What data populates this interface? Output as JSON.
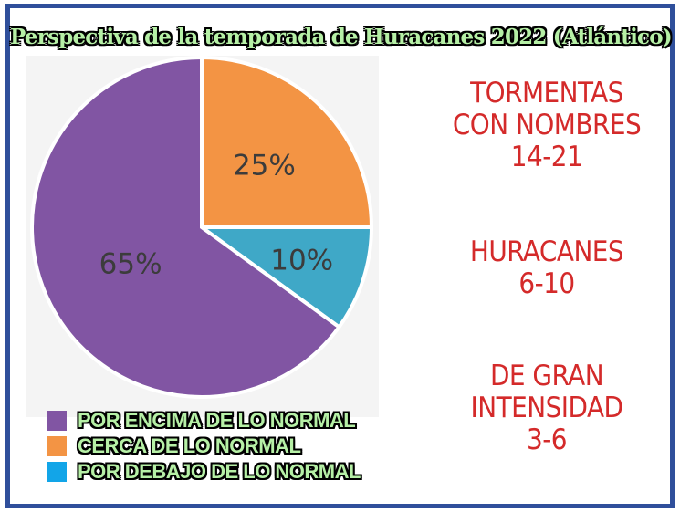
{
  "title": "Perspectiva de la temporada de Huracanes 2022 (Atlántico)",
  "chart_data": {
    "type": "pie",
    "slices": [
      {
        "label": "POR ENCIMA DE LO NORMAL",
        "value": 65,
        "display": "65%",
        "color": "#8155a3"
      },
      {
        "label": "CERCA DE LO NORMAL",
        "value": 25,
        "display": "25%",
        "color": "#f39444"
      },
      {
        "label": "POR DEBAJO DE LO NORMAL",
        "value": 10,
        "display": "10%",
        "color": "#3fa8c7"
      }
    ],
    "legend_position": "bottom-left",
    "start_angle_deg": 0,
    "direction": "clockwise"
  },
  "legend_colors": [
    "#8155a3",
    "#f39444",
    "#12a5e8"
  ],
  "stats": [
    {
      "lines": [
        "TORMENTAS",
        "CON NOMBRES",
        "14-21"
      ]
    },
    {
      "lines": [
        "HURACANES",
        "6-10"
      ]
    },
    {
      "lines": [
        "DE GRAN",
        "INTENSIDAD",
        "3-6"
      ]
    }
  ]
}
